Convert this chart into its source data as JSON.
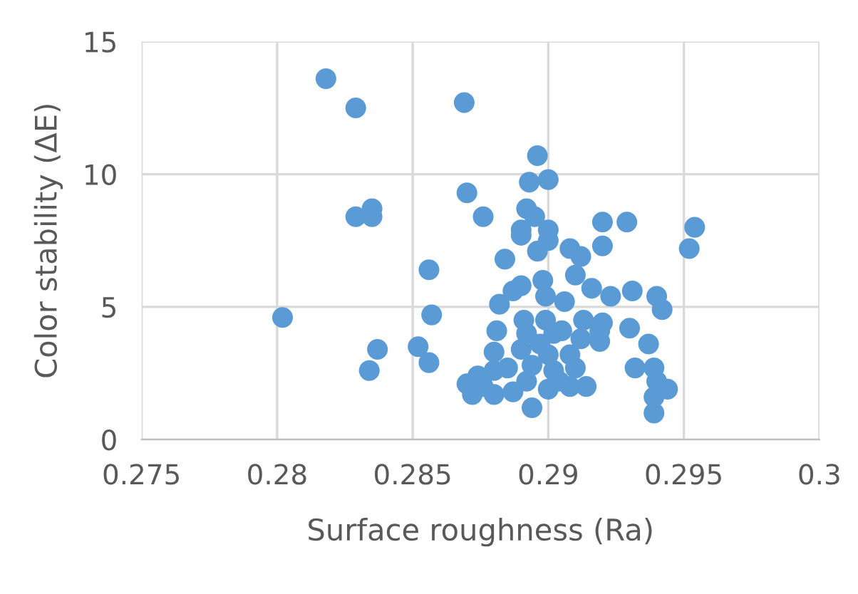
{
  "chart_data": {
    "type": "scatter",
    "xlabel": "Surface roughness (Ra)",
    "ylabel": "Color stability (ΔE)",
    "xlim": [
      0.275,
      0.3
    ],
    "xticks": [
      0.275,
      0.28,
      0.285,
      0.29,
      0.295,
      0.3
    ],
    "ylim": [
      0,
      15
    ],
    "yticks": [
      0,
      5,
      10,
      15
    ],
    "grid": true,
    "marker": "circle",
    "series": [
      {
        "color": "#5b9bd5",
        "x": [
          0.2818,
          0.2829,
          0.2869,
          0.2802,
          0.287,
          0.2876,
          0.2829,
          0.2835,
          0.2835,
          0.2856,
          0.2857,
          0.2852,
          0.2856,
          0.2837,
          0.2834,
          0.2896,
          0.2893,
          0.29,
          0.2892,
          0.2895,
          0.289,
          0.289,
          0.29,
          0.29,
          0.2896,
          0.2884,
          0.2908,
          0.2912,
          0.291,
          0.292,
          0.2929,
          0.292,
          0.2952,
          0.2954,
          0.2898,
          0.2887,
          0.289,
          0.2882,
          0.2899,
          0.2906,
          0.2916,
          0.2923,
          0.2931,
          0.294,
          0.2942,
          0.293,
          0.2937,
          0.2932,
          0.2939,
          0.294,
          0.2944,
          0.2939,
          0.2939,
          0.2894,
          0.2881,
          0.288,
          0.2891,
          0.2899,
          0.2913,
          0.292,
          0.2905,
          0.2919,
          0.29,
          0.289,
          0.2908,
          0.2894,
          0.2902,
          0.291,
          0.2885,
          0.288,
          0.2874,
          0.287,
          0.2872,
          0.288,
          0.2887,
          0.29,
          0.2914,
          0.2904,
          0.2892,
          0.2897,
          0.2912,
          0.2892,
          0.2902,
          0.2919,
          0.2908,
          0.2876
        ],
        "values": [
          13.6,
          12.5,
          12.7,
          4.6,
          9.3,
          8.4,
          8.4,
          8.7,
          8.4,
          6.4,
          4.7,
          3.5,
          2.9,
          3.4,
          2.6,
          10.7,
          9.7,
          9.8,
          8.7,
          8.4,
          7.9,
          7.7,
          7.9,
          7.5,
          7.1,
          6.8,
          7.2,
          6.9,
          6.2,
          8.2,
          8.2,
          7.3,
          7.2,
          8.0,
          6.0,
          5.6,
          5.8,
          5.1,
          5.4,
          5.2,
          5.7,
          5.4,
          5.6,
          5.4,
          4.9,
          4.2,
          3.6,
          2.7,
          2.7,
          2.2,
          1.9,
          1.6,
          1.0,
          1.2,
          4.1,
          3.3,
          4.5,
          4.5,
          4.5,
          4.4,
          4.1,
          3.7,
          3.2,
          3.4,
          3.2,
          2.8,
          2.6,
          2.7,
          2.7,
          2.6,
          2.4,
          2.1,
          1.7,
          1.7,
          1.8,
          1.9,
          2.0,
          2.2,
          2.2,
          3.6,
          3.8,
          4.0,
          4.0,
          4.1,
          2.0,
          2.0
        ]
      }
    ]
  }
}
